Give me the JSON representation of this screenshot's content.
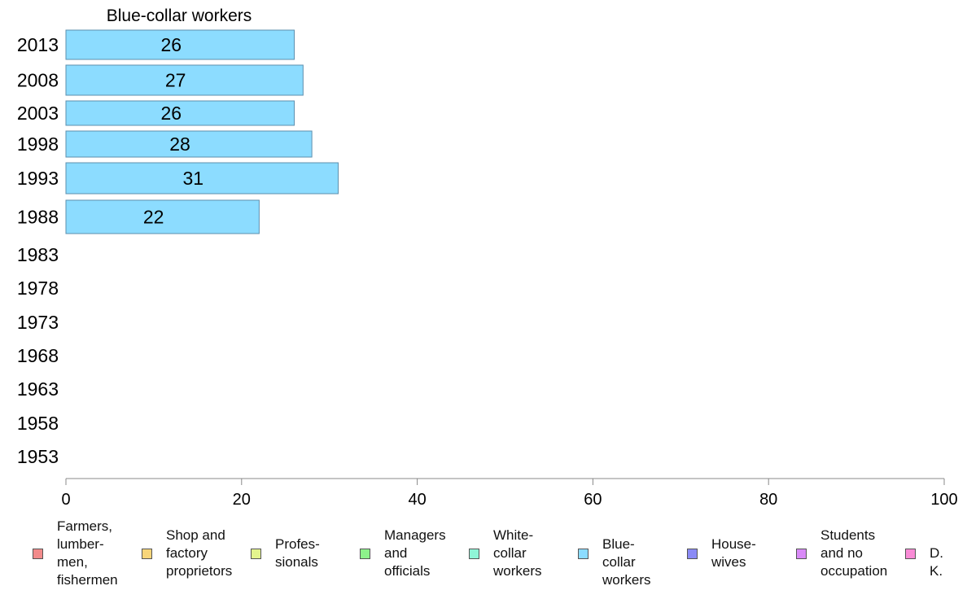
{
  "chart_data": {
    "type": "bar",
    "orientation": "horizontal",
    "title": "Blue-collar workers",
    "categories": [
      "2013",
      "2008",
      "2003",
      "1998",
      "1993",
      "1988",
      "1983",
      "1978",
      "1973",
      "1968",
      "1963",
      "1958",
      "1953"
    ],
    "series": [
      {
        "name": "Blue-collar workers",
        "values": [
          26,
          27,
          26,
          28,
          31,
          22,
          null,
          null,
          null,
          null,
          null,
          null,
          null
        ]
      }
    ],
    "value_labels": [
      "26",
      "27",
      "26",
      "28",
      "31",
      "22",
      "",
      "",
      "",
      "",
      "",
      "",
      ""
    ],
    "xlim": [
      0,
      100
    ],
    "xticks": [
      0,
      20,
      40,
      60,
      80,
      100
    ],
    "grid": false,
    "legend_position": "bottom"
  },
  "legend": [
    {
      "label": "Farmers,\nlumber-\nmen,\nfishermen",
      "color": "#f28b8b"
    },
    {
      "label": "Shop and\nfactory\nproprietors",
      "color": "#f7d57a"
    },
    {
      "label": "Profes-\nsionals",
      "color": "#e4f58e"
    },
    {
      "label": "Managers\nand\nofficials",
      "color": "#8df28b"
    },
    {
      "label": "White-\ncollar\nworkers",
      "color": "#8ff5d7"
    },
    {
      "label": "Blue-collar\nworkers",
      "color": "#8cdcff"
    },
    {
      "label": "House-\nwives",
      "color": "#8a8af5"
    },
    {
      "label": "Students\nand no\noccupation",
      "color": "#d98af7"
    },
    {
      "label": "D. K.",
      "color": "#f98bd6"
    }
  ]
}
